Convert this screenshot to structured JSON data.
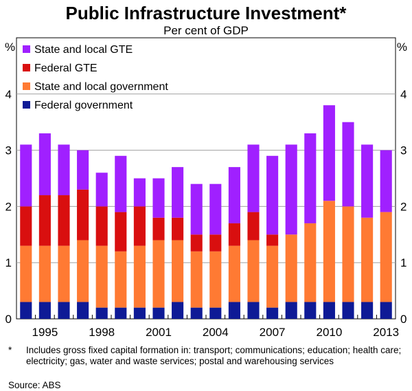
{
  "chart_data": {
    "type": "bar",
    "stacked": true,
    "title": "Public Infrastructure Investment*",
    "subtitle": "Per cent of GDP",
    "ylabel_left": "%",
    "ylabel_right": "%",
    "ylim": [
      0,
      5
    ],
    "yticks": [
      0,
      1,
      2,
      3,
      4
    ],
    "categories": [
      "1994",
      "1995",
      "1996",
      "1997",
      "1998",
      "1999",
      "2000",
      "2001",
      "2002",
      "2003",
      "2004",
      "2005",
      "2006",
      "2007",
      "2008",
      "2009",
      "2010",
      "2011",
      "2012",
      "2013"
    ],
    "xtick_labels": [
      "1995",
      "1998",
      "2001",
      "2004",
      "2007",
      "2010",
      "2013"
    ],
    "series": [
      {
        "name": "Federal government",
        "color": "#0e1a96",
        "values": [
          0.3,
          0.3,
          0.3,
          0.3,
          0.2,
          0.2,
          0.2,
          0.2,
          0.3,
          0.2,
          0.2,
          0.3,
          0.3,
          0.2,
          0.3,
          0.3,
          0.3,
          0.3,
          0.3,
          0.3
        ]
      },
      {
        "name": "State and local government",
        "color": "#ff7a33",
        "values": [
          1.0,
          1.0,
          1.0,
          1.1,
          1.1,
          1.0,
          1.1,
          1.2,
          1.1,
          1.0,
          1.0,
          1.0,
          1.1,
          1.1,
          1.2,
          1.4,
          1.8,
          1.7,
          1.5,
          1.6
        ]
      },
      {
        "name": "Federal GTE",
        "color": "#d90f0f",
        "values": [
          0.7,
          0.9,
          0.9,
          0.9,
          0.7,
          0.7,
          0.7,
          0.4,
          0.4,
          0.3,
          0.3,
          0.4,
          0.5,
          0.2,
          0.0,
          0.0,
          0.0,
          0.0,
          0.0,
          0.0
        ]
      },
      {
        "name": "State and local GTE",
        "color": "#a020ff",
        "values": [
          1.1,
          1.1,
          0.9,
          0.7,
          0.6,
          1.0,
          0.5,
          0.7,
          0.9,
          0.9,
          0.9,
          1.0,
          1.2,
          1.4,
          1.6,
          1.6,
          1.7,
          1.5,
          1.3,
          1.1
        ]
      }
    ],
    "legend": {
      "placement": "top-left",
      "order": [
        "State and local GTE",
        "Federal GTE",
        "State and local government",
        "Federal government"
      ]
    },
    "grid": {
      "horizontal": true,
      "vertical": false
    }
  },
  "footnote": {
    "marker": "*",
    "text": "Includes gross fixed capital formation in: transport; communications; education; health care; electricity; gas, water and waste services; postal and warehousing services"
  },
  "source": "Source: ABS"
}
